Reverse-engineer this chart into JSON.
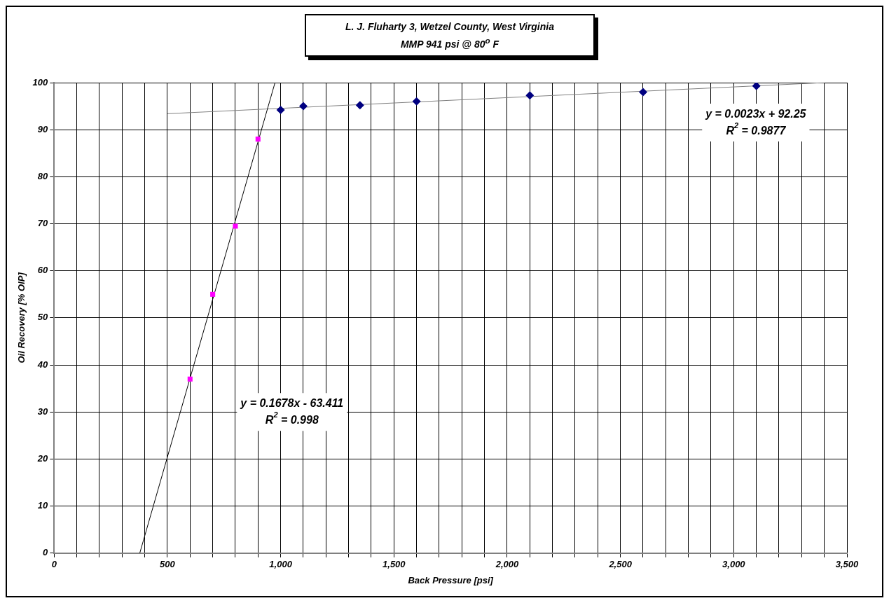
{
  "chart_data": {
    "type": "scatter",
    "title": "L. J. Fluharty 3, Wetzel County, West Virginia",
    "subtitle": "MMP 941 psi @ 80$^{o}$ F",
    "xlabel": "Back Pressure [psi]",
    "ylabel": "Oil Recovery [% OIP]",
    "xlim": [
      0,
      3500
    ],
    "ylim": [
      0,
      100
    ],
    "xticks": [
      0,
      {
        "value": 100,
        "label": null
      },
      {
        "value": 200,
        "label": null
      },
      {
        "value": 300,
        "label": null
      },
      {
        "value": 400,
        "label": null
      },
      500,
      {
        "value": 600,
        "label": null
      },
      {
        "value": 700,
        "label": null
      },
      {
        "value": 800,
        "label": null
      },
      {
        "value": 900,
        "label": null
      },
      {
        "value": 1000,
        "label": "1,000"
      },
      {
        "value": 1100,
        "label": null
      },
      {
        "value": 1200,
        "label": null
      },
      {
        "value": 1300,
        "label": null
      },
      {
        "value": 1400,
        "label": null
      },
      {
        "value": 1500,
        "label": "1,500"
      },
      {
        "value": 1600,
        "label": null
      },
      {
        "value": 1700,
        "label": null
      },
      {
        "value": 1800,
        "label": null
      },
      {
        "value": 1900,
        "label": null
      },
      {
        "value": 2000,
        "label": "2,000"
      },
      {
        "value": 2100,
        "label": null
      },
      {
        "value": 2200,
        "label": null
      },
      {
        "value": 2300,
        "label": null
      },
      {
        "value": 2400,
        "label": null
      },
      {
        "value": 2500,
        "label": "2,500"
      },
      {
        "value": 2600,
        "label": null
      },
      {
        "value": 2700,
        "label": null
      },
      {
        "value": 2800,
        "label": null
      },
      {
        "value": 2900,
        "label": null
      },
      {
        "value": 3000,
        "label": "3,000"
      },
      {
        "value": 3100,
        "label": null
      },
      {
        "value": 3200,
        "label": null
      },
      {
        "value": 3300,
        "label": null
      },
      {
        "value": 3400,
        "label": null
      },
      {
        "value": 3500,
        "label": "3,500"
      }
    ],
    "yticks": [
      0,
      10,
      20,
      30,
      40,
      50,
      60,
      70,
      80,
      90,
      100
    ],
    "grid": true,
    "legend": false,
    "series": [
      {
        "type": "scatter",
        "marker": "square",
        "color": "#ff00ff",
        "x": [
          600,
          700,
          800,
          900
        ],
        "values": [
          37,
          55,
          69.5,
          88
        ]
      },
      {
        "type": "scatter",
        "marker": "diamond",
        "color": "#000080",
        "x": [
          1000,
          1100,
          1350,
          1600,
          2100,
          2600,
          3100
        ],
        "values": [
          94.2,
          95,
          95.2,
          96,
          97.3,
          98,
          99.3
        ]
      },
      {
        "type": "line",
        "marker": "none",
        "color": "#000000",
        "x": [
          378,
          975
        ],
        "values": [
          0,
          100
        ]
      },
      {
        "type": "line",
        "marker": "none",
        "color": "#808080",
        "x": [
          500,
          3400
        ],
        "values": [
          93.4,
          100
        ]
      }
    ],
    "annotations": [
      "y = 0.1678x - 63.411\nR$^{2}$ = 0.998",
      "y = 0.0023x + 92.25\nR$^{2}$ = 0.9877"
    ]
  }
}
